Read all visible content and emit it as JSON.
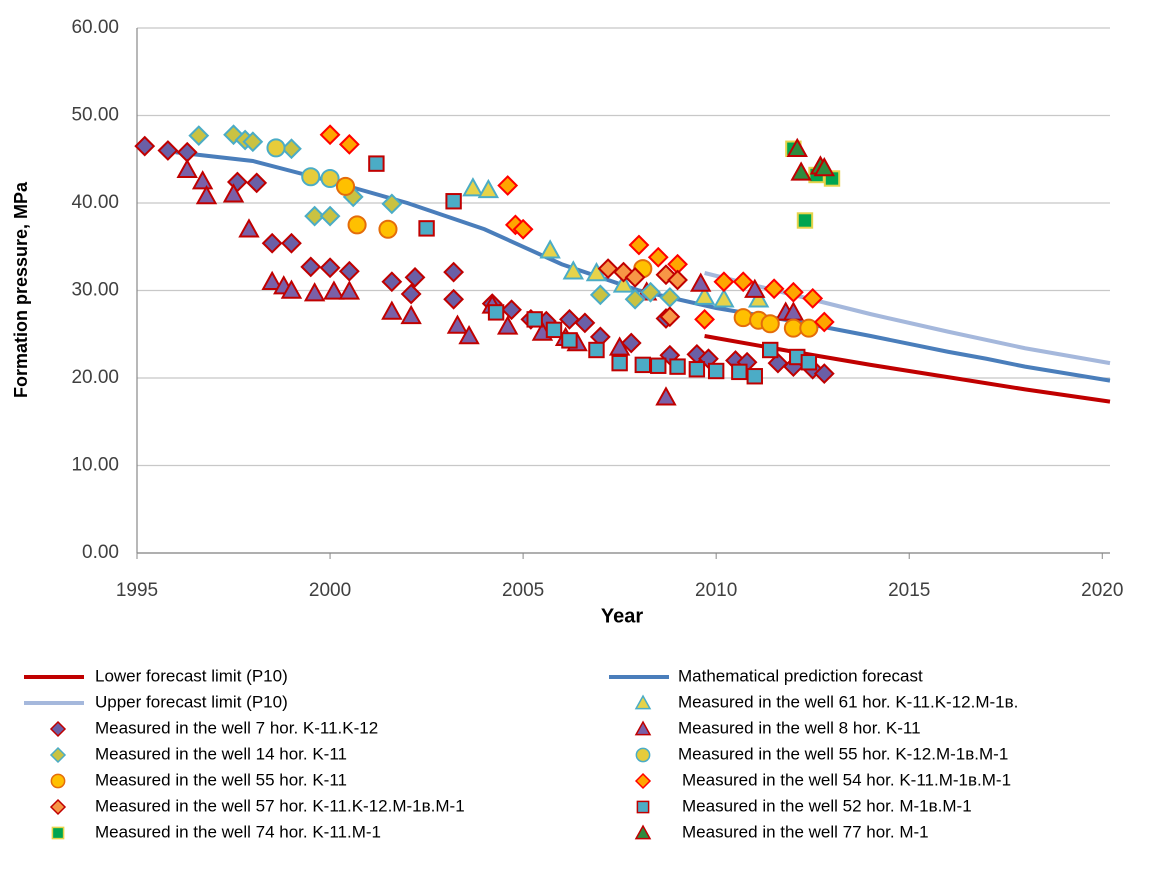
{
  "chart_data": {
    "type": "scatter",
    "xlabel": "Year",
    "ylabel": "Formation pressure, MPa",
    "xlim": [
      1995,
      2020.2
    ],
    "xticks": [
      1995,
      2000,
      2005,
      2010,
      2015,
      2020
    ],
    "ylim": [
      0,
      60
    ],
    "yticks": [
      {
        "value": 0,
        "label": "0.00"
      },
      {
        "value": 10,
        "label": "10.00"
      },
      {
        "value": 20,
        "label": "20.00"
      },
      {
        "value": 30,
        "label": "30.00"
      },
      {
        "value": 40,
        "label": "40.00"
      },
      {
        "value": 50,
        "label": "50.00"
      },
      {
        "value": 60,
        "label": "60.00"
      }
    ],
    "grid": true,
    "legend": "bottom",
    "series": [
      {
        "name": "Lower forecast limit (P10)",
        "marker": "line",
        "color": "#c00000",
        "x": [
          2009.7,
          2012,
          2014,
          2016,
          2018,
          2020.2
        ],
        "values": [
          24.8,
          23,
          21.5,
          20.1,
          18.7,
          17.3
        ]
      },
      {
        "name": "Mathematical prediction forecast",
        "marker": "line",
        "color": "#4a7ebb",
        "x": [
          1996,
          1998,
          2000,
          2002,
          2004,
          2006,
          2008,
          2010,
          2012,
          2014,
          2016,
          2017,
          2018,
          2020.2
        ],
        "values": [
          45.8,
          44.8,
          42.5,
          40,
          37,
          33,
          30,
          28,
          26.5,
          24.8,
          23,
          22.2,
          21.3,
          19.7
        ]
      },
      {
        "name": "Upper forecast limit (P10)",
        "marker": "line",
        "color": "#a5b8dc",
        "x": [
          2009.7,
          2012,
          2014,
          2016,
          2018,
          2020.2
        ],
        "values": [
          32,
          29.5,
          27.3,
          25.3,
          23.4,
          21.7
        ]
      },
      {
        "name": "Measured in the well 61 hor. K-11.K-12.M-1в.",
        "marker": "triangle",
        "color": "#e6d34a",
        "edgecolor": "#4bacc6",
        "x": [
          2003.7,
          2004.1,
          2005.7,
          2006.3,
          2006.9,
          2007.6,
          2009.7,
          2010.2,
          2011.1
        ],
        "values": [
          41.7,
          41.5,
          34.6,
          32.2,
          32,
          30.7,
          29.3,
          29,
          29
        ]
      },
      {
        "name": "Measured in the well 7 hor. K-11.K-12",
        "marker": "diamond",
        "color": "#6a5fa6",
        "edgecolor": "#c00000",
        "x": [
          1995.2,
          1995.8,
          1996.3,
          1997.6,
          1998.1,
          1998.5,
          1999,
          1999.5,
          2000,
          2000.5,
          2001.6,
          2002.2,
          2002.1,
          2003.2,
          2003.2,
          2004.2,
          2004.7,
          2005.2,
          2005.6,
          2006.2,
          2006.6,
          2007,
          2007.8,
          2008.7,
          2008.8,
          2009.5,
          2009.8,
          2010.5,
          2010.8,
          2011.6,
          2012,
          2012.5,
          2012.8
        ],
        "values": [
          46.5,
          46,
          45.8,
          42.4,
          42.3,
          35.4,
          35.4,
          32.7,
          32.6,
          32.2,
          31,
          31.5,
          29.6,
          32.1,
          29,
          28.5,
          27.8,
          26.7,
          26.5,
          26.7,
          26.3,
          24.7,
          24,
          26.8,
          22.6,
          22.7,
          22.2,
          22,
          21.8,
          21.7,
          21.3,
          21,
          20.5
        ]
      },
      {
        "name": "Measured in the well 8 hor. K-11",
        "marker": "triangle",
        "color": "#7a60a8",
        "edgecolor": "#c00000",
        "x": [
          1996.3,
          1996.7,
          1996.8,
          1997.5,
          1997.9,
          1998.5,
          1998.8,
          1999,
          1999.6,
          2000.1,
          2000.5,
          2001.6,
          2002.1,
          2003.3,
          2003.6,
          2004.2,
          2004.6,
          2005.5,
          2006.1,
          2006.4,
          2007.5,
          2008.2,
          2008.7,
          2009.6,
          2011,
          2011.8,
          2012
        ],
        "values": [
          43.8,
          42.5,
          40.8,
          41,
          37,
          31,
          30.5,
          30,
          29.7,
          29.9,
          29.9,
          27.6,
          27.1,
          26,
          24.8,
          28.3,
          25.9,
          25.2,
          24.6,
          24,
          23.5,
          29.8,
          17.8,
          30.8,
          30.1,
          27.5,
          27.5
        ]
      },
      {
        "name": "Measured in the well 14 hor. K-11",
        "marker": "diamond",
        "color": "#c9c242",
        "edgecolor": "#4bacc6",
        "x": [
          1996.6,
          1997.5,
          1997.8,
          1998,
          1999,
          1999.6,
          2000,
          2000.6,
          2001.6,
          2007,
          2007.9,
          2008.3,
          2008.8
        ],
        "values": [
          47.7,
          47.8,
          47.2,
          47,
          46.2,
          38.5,
          38.5,
          40.7,
          39.9,
          29.5,
          29,
          29.8,
          29.2
        ]
      },
      {
        "name": "Measured in the well 55 hor. K-12.M-1в.M-1",
        "marker": "circle",
        "color": "#e6cc3a",
        "edgecolor": "#4bacc6",
        "x": [
          1998.6,
          1999.5,
          2000
        ],
        "values": [
          46.3,
          43,
          42.8
        ]
      },
      {
        "name": "Measured in the well 55 hor. K-11",
        "marker": "circle",
        "color": "#ffc000",
        "edgecolor": "#e46c0a",
        "x": [
          2000.4,
          2000.7,
          2001.5,
          2008.1,
          2010.7,
          2011.1,
          2011.4,
          2012,
          2012.4
        ],
        "values": [
          41.9,
          37.5,
          37,
          32.5,
          26.9,
          26.6,
          26.2,
          25.7,
          25.7
        ]
      },
      {
        "name": "Measured in the well 54 hor. K-11.M-1в.M-1",
        "marker": "diamond",
        "color": "#ffa500",
        "edgecolor": "#ff0000",
        "x": [
          2000,
          2000.5,
          2004.6,
          2004.8,
          2005,
          2008,
          2008.5,
          2009,
          2009.7,
          2010.2,
          2010.7,
          2011.5,
          2012,
          2012.5,
          2012.8
        ],
        "values": [
          47.8,
          46.7,
          42,
          37.5,
          37,
          35.2,
          33.8,
          33,
          26.7,
          31,
          31,
          30.2,
          29.8,
          29.1,
          26.4
        ]
      },
      {
        "name": "Measured in the well 57 hor. K-11.K-12.M-1в.M-1",
        "marker": "diamond",
        "color": "#f79646",
        "edgecolor": "#c00000",
        "x": [
          2007.2,
          2007.6,
          2007.9,
          2008.7,
          2008.8,
          2009
        ],
        "values": [
          32.5,
          32.1,
          31.5,
          31.8,
          27,
          31.2
        ]
      },
      {
        "name": "Measured in the well 52 hor. M-1в.M-1",
        "marker": "square",
        "color": "#4bacc6",
        "edgecolor": "#c00000",
        "x": [
          2001.2,
          2002.5,
          2003.2,
          2004.3,
          2005.3,
          2005.8,
          2006.2,
          2006.9,
          2007.5,
          2008.1,
          2008.5,
          2009,
          2009.5,
          2010,
          2010.6,
          2011,
          2011.4,
          2012.1,
          2012.4
        ],
        "values": [
          44.5,
          37.1,
          40.2,
          27.5,
          26.7,
          25.5,
          24.3,
          23.2,
          21.7,
          21.5,
          21.4,
          21.3,
          21,
          20.8,
          20.7,
          20.2,
          23.2,
          22.4,
          21.8
        ]
      },
      {
        "name": "Measured in the well 74 hor. K-11.M-1",
        "marker": "square",
        "color": "#00a550",
        "edgecolor": "#e6d34a",
        "x": [
          2012,
          2012.3,
          2012.6,
          2013
        ],
        "values": [
          46.2,
          38,
          43.2,
          42.8
        ]
      },
      {
        "name": "Measured in the well 77 hor. M-1",
        "marker": "triangle",
        "color": "#2e8b3e",
        "edgecolor": "#c00000",
        "x": [
          2012.1,
          2012.2,
          2012.7,
          2012.8
        ],
        "values": [
          46.2,
          43.5,
          44.2,
          44
        ]
      }
    ]
  }
}
